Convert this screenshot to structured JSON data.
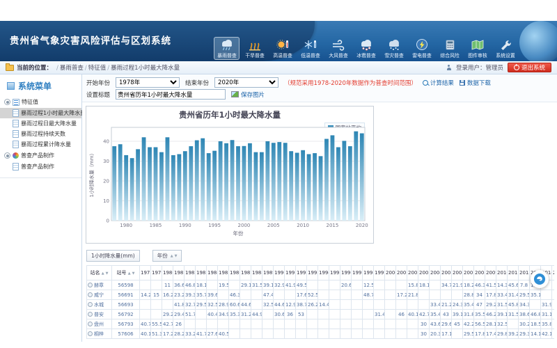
{
  "header": {
    "title": "贵州省气象灾害风险评估与区划系统"
  },
  "nav": {
    "items": [
      {
        "label": "暴雨普查",
        "icon": "rain-icon",
        "active": true
      },
      {
        "label": "干旱普查",
        "icon": "drought-icon",
        "active": false
      },
      {
        "label": "高温普查",
        "icon": "heat-icon",
        "active": false
      },
      {
        "label": "低温普查",
        "icon": "cold-icon",
        "active": false
      },
      {
        "label": "大风普查",
        "icon": "wind-icon",
        "active": false
      },
      {
        "label": "冰雹普查",
        "icon": "hail-icon",
        "active": false
      },
      {
        "label": "雪灾普查",
        "icon": "snow-icon",
        "active": false
      },
      {
        "label": "雷电普查",
        "icon": "lightning-icon",
        "active": false
      },
      {
        "label": "综合风险",
        "icon": "risk-icon",
        "active": false
      },
      {
        "label": "图件审核",
        "icon": "map-icon",
        "active": false
      },
      {
        "label": "系统设置",
        "icon": "settings-icon",
        "active": false
      }
    ]
  },
  "breadcrumb": {
    "prefix": "当前的位置：",
    "items": [
      "暴雨普查",
      "特征值",
      "暴雨过程1小时最大降水量"
    ]
  },
  "user": {
    "login_label": "登录用户：管理员",
    "logout_label": "退出系统"
  },
  "sidebar": {
    "title": "系统菜单",
    "groups": [
      {
        "label": "特征值",
        "icon": "list-icon",
        "items": [
          {
            "label": "暴雨过程1小时最大降水量",
            "selected": true
          },
          {
            "label": "暴雨过程日最大降水量",
            "selected": false
          },
          {
            "label": "暴雨过程持续天数",
            "selected": false
          },
          {
            "label": "暴雨过程累计降水量",
            "selected": false
          }
        ]
      },
      {
        "label": "普查产品制作",
        "icon": "wheel-icon",
        "items": [
          {
            "label": "普查产品制作",
            "selected": false
          }
        ]
      }
    ]
  },
  "form": {
    "start_label": "开始年份",
    "start_value": "1978年",
    "end_label": "结束年份",
    "end_value": "2020年",
    "note": "（规范采用1978-2020年数据作为普查时间范围）",
    "calc_button": "计算结果",
    "download_button": "数据下载",
    "title_label": "设置标题",
    "title_value": "贵州省历年1小时最大降水量",
    "save_button": "保存图片"
  },
  "chart_data": {
    "type": "bar",
    "title": "贵州省历年1小时最大降水量",
    "legend": [
      "国家站平均"
    ],
    "legend_position": "top-right",
    "xlabel": "年份",
    "ylabel": "1小时降水量（mm）",
    "ylim": [
      0,
      47
    ],
    "yticks": [
      0,
      10,
      20,
      30,
      40
    ],
    "grid": true,
    "bar_color_top": "#2e86b4",
    "bar_color_bottom": "#d9eef7",
    "x": [
      1978,
      1979,
      1980,
      1981,
      1982,
      1983,
      1984,
      1985,
      1986,
      1987,
      1988,
      1989,
      1990,
      1991,
      1992,
      1993,
      1994,
      1995,
      1996,
      1997,
      1998,
      1999,
      2000,
      2001,
      2002,
      2003,
      2004,
      2005,
      2006,
      2007,
      2008,
      2009,
      2010,
      2011,
      2012,
      2013,
      2014,
      2015,
      2016,
      2017,
      2018,
      2019,
      2020
    ],
    "series": [
      {
        "name": "国家站平均",
        "values": [
          37.5,
          38.5,
          33,
          31.5,
          36,
          42,
          37,
          37,
          34.5,
          42,
          33,
          33.5,
          35,
          37.5,
          40.5,
          41.5,
          34,
          35.2,
          40,
          39,
          40.6,
          37.5,
          37.6,
          39,
          34.5,
          34.5,
          40,
          39.2,
          39.6,
          39.2,
          35,
          34.2,
          35.5,
          33.5,
          34,
          32.5,
          41.2,
          43,
          37,
          40.2,
          37.5,
          45,
          44
        ]
      }
    ]
  },
  "filters": {
    "value_field": "1小时降水量(mm)",
    "year_field": "年份"
  },
  "table": {
    "columns": {
      "name": "站名",
      "id": "站号"
    },
    "years": [
      1978,
      1979,
      1980,
      1981,
      1982,
      1983,
      1984,
      1985,
      1986,
      1987,
      1988,
      1989,
      1990,
      1991,
      1992,
      1993,
      1994,
      1995,
      1996,
      1997,
      1998,
      1999,
      2000,
      2001,
      2002,
      2003,
      2004,
      2005,
      2006,
      2007,
      2008,
      2009,
      2010,
      2011,
      2012,
      2013,
      2014,
      2015
    ],
    "rows": [
      {
        "name": "赫章",
        "id": "56598",
        "values": {
          "1980": "11",
          "1981": "36.6",
          "1982": "46.8",
          "1983": "18.1",
          "1985": "19.5",
          "1987": "29.1",
          "1988": "31.5",
          "1989": "39.1",
          "1990": "32.9",
          "1991": "41.9",
          "1992": "49.5",
          "1996": "20.6",
          "1998": "12.5",
          "2002": "15.8",
          "2003": "18.1",
          "2005": "34.7",
          "2006": "21.9",
          "2007": "18.2",
          "2008": "46.3",
          "2009": "41.5",
          "2010": "14.3",
          "2011": "45.6",
          "2012": "7.8",
          "2013": "15.3"
        }
      },
      {
        "name": "威宁",
        "id": "56691",
        "values": {
          "1978": "14.2",
          "1979": "15",
          "1980": "16.2",
          "1981": "23.2",
          "1982": "39.3",
          "1983": "35.7",
          "1984": "39.6",
          "1986": "46.3",
          "1989": "47.4",
          "1992": "17.6",
          "1993": "52.5",
          "1998": "48.7",
          "2001": "17.2",
          "2002": "21.8",
          "2007": "28.8",
          "2008": "34",
          "2009": "17.8",
          "2010": "33.4",
          "2011": "31.4",
          "2012": "29.5",
          "2013": "35.1"
        }
      },
      {
        "name": "水城",
        "id": "56693",
        "values": {
          "1981": "41.8",
          "1982": "32.7",
          "1983": "29.5",
          "1984": "32.5",
          "1985": "28.9",
          "1986": "60.6",
          "1987": "44.6",
          "1989": "32.5",
          "1990": "44.6",
          "1991": "12.9",
          "1992": "38.7",
          "1993": "26.2",
          "1994": "14.4",
          "2004": "33.4",
          "2005": "21.2",
          "2006": "24.3",
          "2007": "35.4",
          "2008": "47",
          "2009": "29.2",
          "2010": "31.5",
          "2011": "45.8",
          "2012": "34.3",
          "2014": "31.9"
        }
      },
      {
        "name": "普安",
        "id": "56792",
        "values": {
          "1980": "29.2",
          "1981": "29.4",
          "1982": "51.7",
          "1984": "40.4",
          "1985": "34.9",
          "1986": "35.3",
          "1987": "31.2",
          "1988": "44.9",
          "1990": "30.6",
          "1991": "36",
          "1992": "53",
          "1999": "31.4",
          "2001": "46",
          "2002": "40.1",
          "2003": "42.7",
          "2004": "35.4",
          "2005": "43",
          "2006": "39.1",
          "2007": "31.8",
          "2008": "35.5",
          "2009": "46.2",
          "2010": "39.1",
          "2011": "31.5",
          "2012": "38.6",
          "2013": "46.8",
          "2014": "31.1"
        }
      },
      {
        "name": "盘州",
        "id": "56793",
        "values": {
          "1978": "40.7",
          "1979": "55.5",
          "1980": "42.7",
          "1981": "26",
          "2003": "30",
          "2004": "43.6",
          "2005": "29.6",
          "2006": "45",
          "2007": "42.2",
          "2008": "56.5",
          "2009": "28.1",
          "2010": "32.5",
          "2012": "30.2",
          "2013": "18.5",
          "2014": "35.8"
        }
      },
      {
        "name": "桐梓",
        "id": "57606",
        "values": {
          "1978": "40.1",
          "1979": "51.3",
          "1980": "17.2",
          "1981": "28.2",
          "1982": "33.2",
          "1983": "41.7",
          "1984": "27.6",
          "1985": "40.5",
          "2003": "30",
          "2004": "20.3",
          "2005": "17.1",
          "2007": "29.5",
          "2008": "17.8",
          "2009": "17.4",
          "2010": "29.8",
          "2011": "39.2",
          "2012": "29.3",
          "2013": "14.1",
          "2014": "42.1"
        }
      }
    ]
  }
}
